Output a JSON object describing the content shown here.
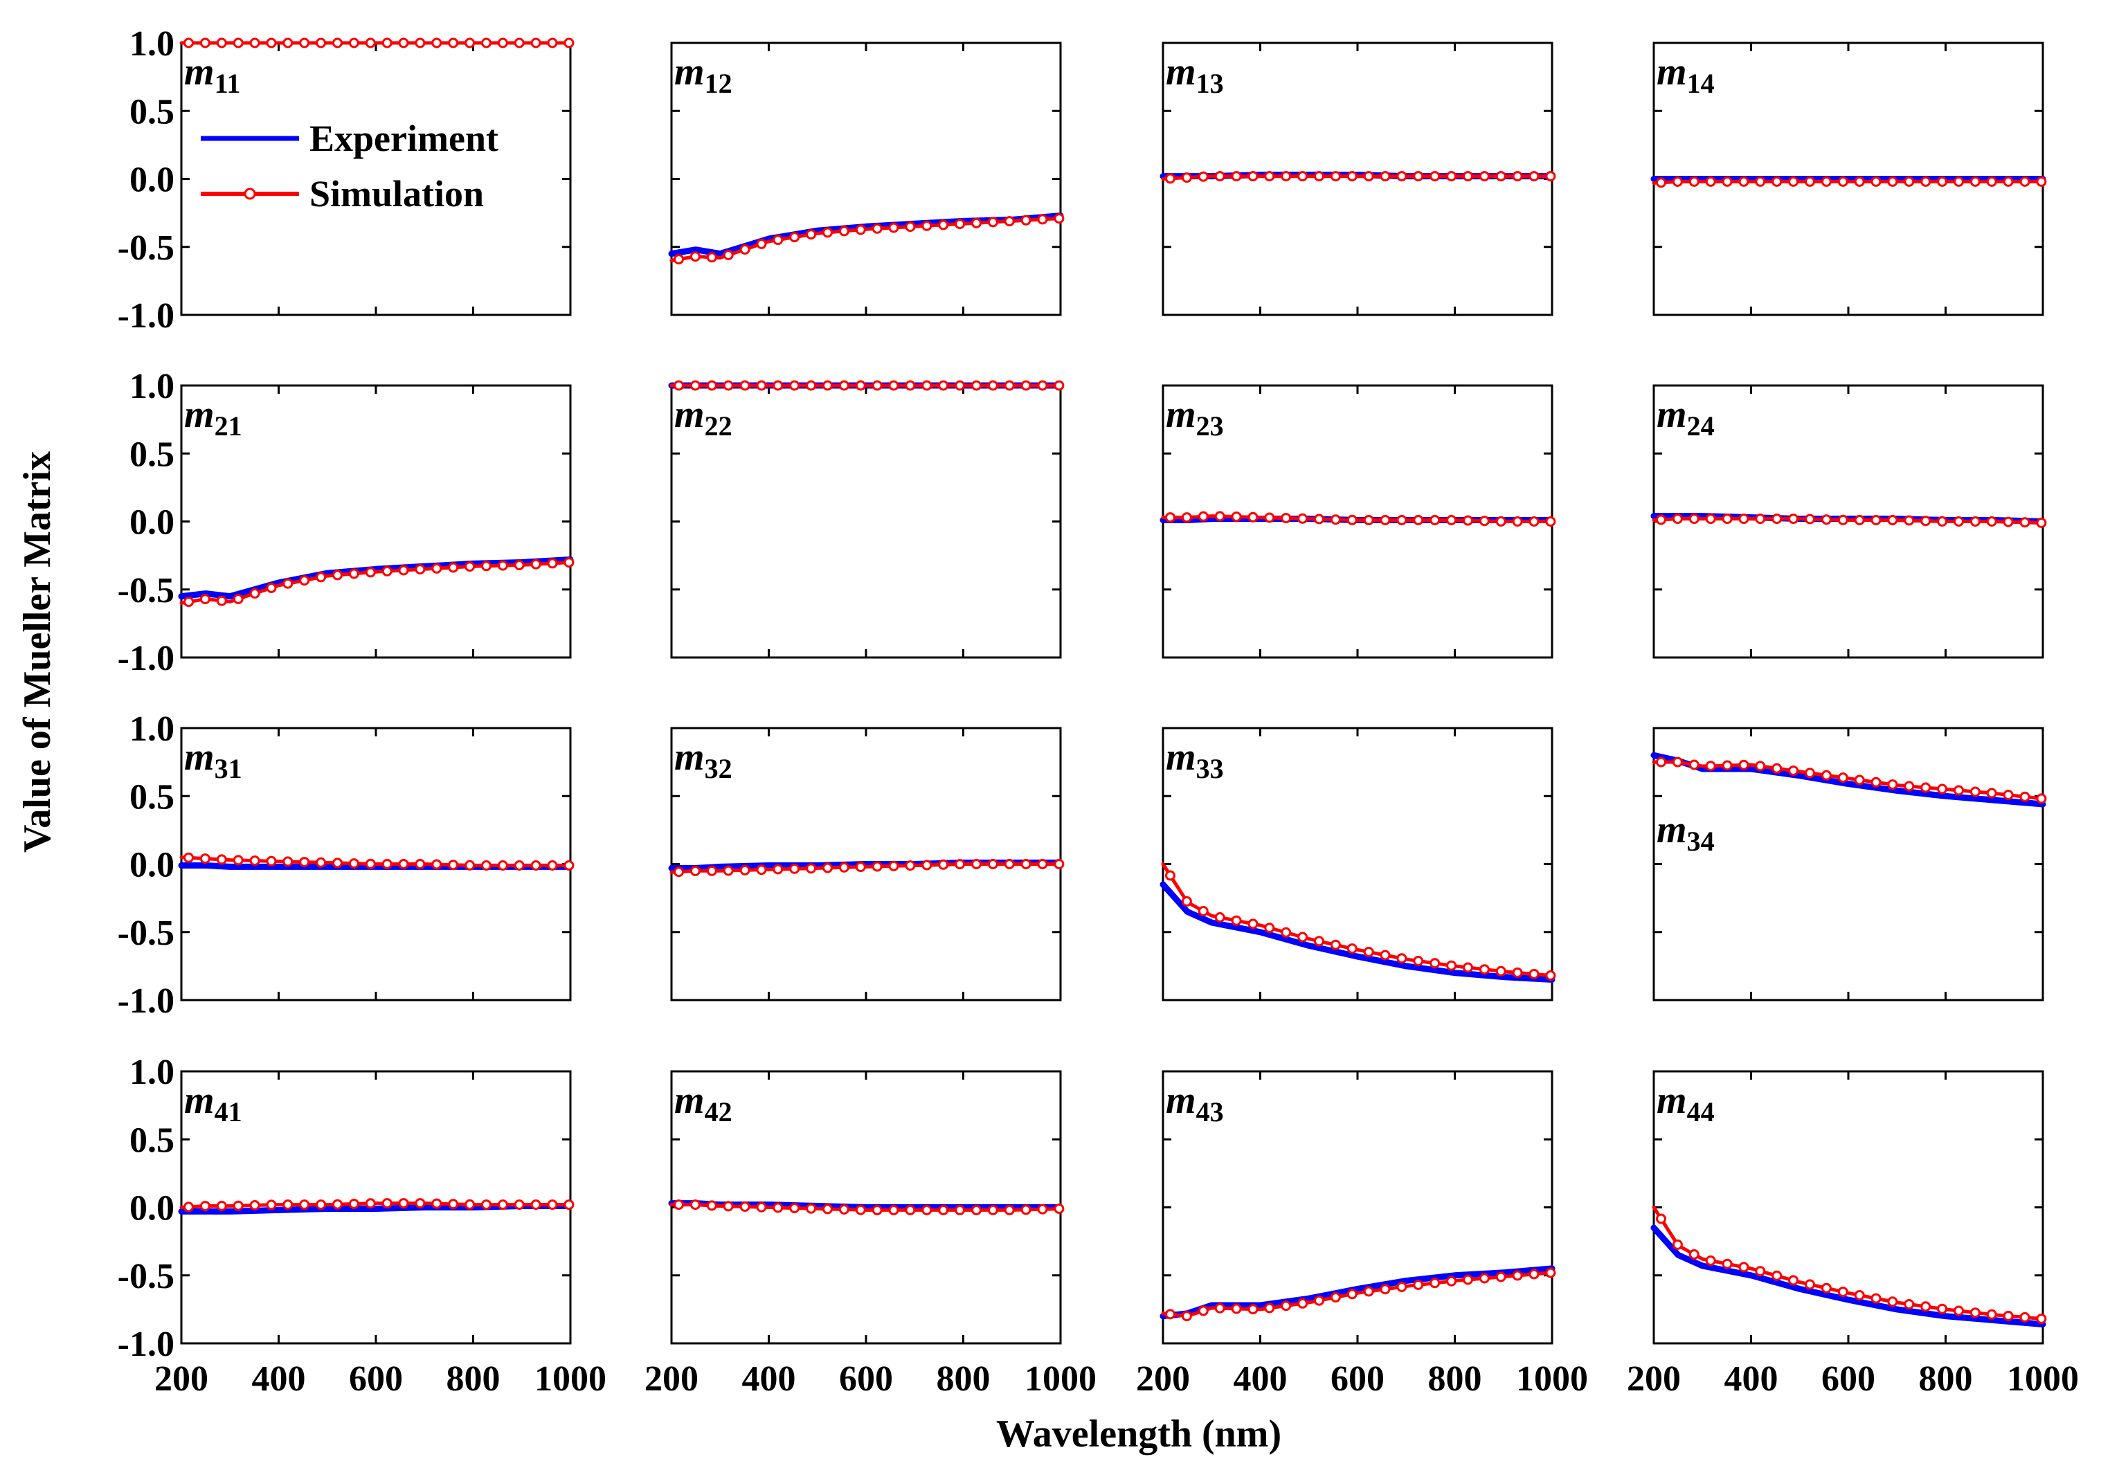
{
  "chart_data": {
    "type": "line",
    "grid": false,
    "layout": "4x4 panel grid",
    "xlabel": "Wavelength (nm)",
    "ylabel": "Value of Mueller Matrix",
    "xlim": [
      200,
      1000
    ],
    "ylim": [
      -1.0,
      1.0
    ],
    "x_ticks": [
      "200",
      "400",
      "600",
      "800",
      "1000"
    ],
    "y_ticks": [
      "1.0",
      "0.5",
      "0.0",
      "-0.5",
      "-1.0"
    ],
    "legend": [
      "Experiment",
      "Simulation"
    ],
    "legend_location": "inside panel m11, upper-left",
    "series_colors": {
      "Experiment": "#0000ff",
      "Simulation": "#ff0000"
    },
    "simulation_marker": "open circle",
    "x": [
      200,
      250,
      300,
      400,
      500,
      600,
      700,
      800,
      900,
      1000
    ],
    "panels": [
      {
        "name": "m11",
        "label_main": "m",
        "label_sub": "11",
        "label_pos": "top",
        "series": [
          {
            "name": "Simulation",
            "values": [
              1.0,
              1.0,
              1.0,
              1.0,
              1.0,
              1.0,
              1.0,
              1.0,
              1.0,
              1.0
            ]
          }
        ]
      },
      {
        "name": "m12",
        "label_main": "m",
        "label_sub": "12",
        "label_pos": "top",
        "series": [
          {
            "name": "Experiment",
            "values": [
              -0.55,
              -0.52,
              -0.55,
              -0.44,
              -0.38,
              -0.35,
              -0.33,
              -0.31,
              -0.3,
              -0.27
            ]
          },
          {
            "name": "Simulation",
            "values": [
              -0.6,
              -0.57,
              -0.58,
              -0.46,
              -0.4,
              -0.37,
              -0.35,
              -0.33,
              -0.31,
              -0.29
            ]
          }
        ]
      },
      {
        "name": "m13",
        "label_main": "m",
        "label_sub": "13",
        "label_pos": "top",
        "series": [
          {
            "name": "Experiment",
            "values": [
              0.02,
              0.02,
              0.02,
              0.03,
              0.03,
              0.03,
              0.02,
              0.02,
              0.02,
              0.02
            ]
          },
          {
            "name": "Simulation",
            "values": [
              0.0,
              0.01,
              0.02,
              0.02,
              0.02,
              0.02,
              0.02,
              0.02,
              0.02,
              0.02
            ]
          }
        ]
      },
      {
        "name": "m14",
        "label_main": "m",
        "label_sub": "14",
        "label_pos": "top",
        "series": [
          {
            "name": "Experiment",
            "values": [
              0.0,
              0.0,
              0.0,
              0.0,
              0.0,
              0.0,
              0.0,
              0.0,
              0.0,
              0.0
            ]
          },
          {
            "name": "Simulation",
            "values": [
              -0.03,
              -0.02,
              -0.02,
              -0.02,
              -0.02,
              -0.02,
              -0.02,
              -0.02,
              -0.02,
              -0.02
            ]
          }
        ]
      },
      {
        "name": "m21",
        "label_main": "m",
        "label_sub": "21",
        "label_pos": "top",
        "series": [
          {
            "name": "Experiment",
            "values": [
              -0.55,
              -0.53,
              -0.55,
              -0.45,
              -0.38,
              -0.35,
              -0.33,
              -0.31,
              -0.3,
              -0.28
            ]
          },
          {
            "name": "Simulation",
            "values": [
              -0.6,
              -0.57,
              -0.59,
              -0.47,
              -0.4,
              -0.37,
              -0.35,
              -0.33,
              -0.32,
              -0.3
            ]
          }
        ]
      },
      {
        "name": "m22",
        "label_main": "m",
        "label_sub": "22",
        "label_pos": "top",
        "series": [
          {
            "name": "Experiment",
            "values": [
              1.0,
              1.0,
              1.0,
              1.0,
              1.0,
              1.0,
              1.0,
              1.0,
              1.0,
              1.0
            ]
          },
          {
            "name": "Simulation",
            "values": [
              1.0,
              1.0,
              1.0,
              1.0,
              1.0,
              1.0,
              1.0,
              1.0,
              1.0,
              1.0
            ]
          }
        ]
      },
      {
        "name": "m23",
        "label_main": "m",
        "label_sub": "23",
        "label_pos": "top",
        "series": [
          {
            "name": "Experiment",
            "values": [
              0.01,
              0.01,
              0.02,
              0.02,
              0.02,
              0.01,
              0.01,
              0.01,
              0.01,
              0.01
            ]
          },
          {
            "name": "Simulation",
            "values": [
              0.03,
              0.03,
              0.04,
              0.03,
              0.02,
              0.01,
              0.01,
              0.01,
              0.0,
              0.0
            ]
          }
        ]
      },
      {
        "name": "m24",
        "label_main": "m",
        "label_sub": "24",
        "label_pos": "top",
        "series": [
          {
            "name": "Experiment",
            "values": [
              0.04,
              0.04,
              0.04,
              0.03,
              0.02,
              0.02,
              0.02,
              0.01,
              0.01,
              0.0
            ]
          },
          {
            "name": "Simulation",
            "values": [
              0.01,
              0.02,
              0.02,
              0.02,
              0.02,
              0.01,
              0.01,
              0.0,
              0.0,
              -0.01
            ]
          }
        ]
      },
      {
        "name": "m31",
        "label_main": "m",
        "label_sub": "31",
        "label_pos": "top",
        "series": [
          {
            "name": "Experiment",
            "values": [
              -0.01,
              -0.01,
              -0.02,
              -0.02,
              -0.02,
              -0.02,
              -0.02,
              -0.02,
              -0.02,
              -0.02
            ]
          },
          {
            "name": "Simulation",
            "values": [
              0.05,
              0.04,
              0.03,
              0.02,
              0.01,
              0.0,
              0.0,
              -0.01,
              -0.01,
              -0.01
            ]
          }
        ]
      },
      {
        "name": "m32",
        "label_main": "m",
        "label_sub": "32",
        "label_pos": "top",
        "series": [
          {
            "name": "Experiment",
            "values": [
              -0.03,
              -0.03,
              -0.02,
              -0.01,
              -0.01,
              0.0,
              0.0,
              0.01,
              0.01,
              0.01
            ]
          },
          {
            "name": "Simulation",
            "values": [
              -0.06,
              -0.05,
              -0.05,
              -0.04,
              -0.03,
              -0.02,
              -0.01,
              0.0,
              0.0,
              0.0
            ]
          }
        ]
      },
      {
        "name": "m33",
        "label_main": "m",
        "label_sub": "33",
        "label_pos": "top",
        "series": [
          {
            "name": "Experiment",
            "values": [
              -0.15,
              -0.35,
              -0.43,
              -0.5,
              -0.6,
              -0.68,
              -0.75,
              -0.8,
              -0.83,
              -0.85
            ]
          },
          {
            "name": "Simulation",
            "values": [
              0.0,
              -0.28,
              -0.38,
              -0.45,
              -0.55,
              -0.63,
              -0.7,
              -0.75,
              -0.79,
              -0.82
            ]
          }
        ]
      },
      {
        "name": "m34",
        "label_main": "m",
        "label_sub": "34",
        "label_pos": "middle",
        "series": [
          {
            "name": "Experiment",
            "values": [
              0.8,
              0.76,
              0.7,
              0.7,
              0.65,
              0.59,
              0.54,
              0.5,
              0.47,
              0.44
            ]
          },
          {
            "name": "Simulation",
            "values": [
              0.75,
              0.75,
              0.72,
              0.73,
              0.68,
              0.63,
              0.58,
              0.55,
              0.52,
              0.48
            ]
          }
        ]
      },
      {
        "name": "m41",
        "label_main": "m",
        "label_sub": "41",
        "label_pos": "top",
        "series": [
          {
            "name": "Experiment",
            "values": [
              -0.03,
              -0.03,
              -0.03,
              -0.02,
              -0.01,
              -0.01,
              0.0,
              0.0,
              0.01,
              0.01
            ]
          },
          {
            "name": "Simulation",
            "values": [
              0.0,
              0.01,
              0.01,
              0.02,
              0.02,
              0.03,
              0.03,
              0.02,
              0.02,
              0.02
            ]
          }
        ]
      },
      {
        "name": "m42",
        "label_main": "m",
        "label_sub": "42",
        "label_pos": "top",
        "series": [
          {
            "name": "Experiment",
            "values": [
              0.03,
              0.03,
              0.02,
              0.02,
              0.01,
              0.0,
              0.0,
              0.0,
              0.0,
              0.0
            ]
          },
          {
            "name": "Simulation",
            "values": [
              0.02,
              0.02,
              0.01,
              0.0,
              -0.01,
              -0.02,
              -0.02,
              -0.02,
              -0.02,
              -0.01
            ]
          }
        ]
      },
      {
        "name": "m43",
        "label_main": "m",
        "label_sub": "43",
        "label_pos": "top",
        "series": [
          {
            "name": "Experiment",
            "values": [
              -0.8,
              -0.78,
              -0.72,
              -0.72,
              -0.67,
              -0.6,
              -0.54,
              -0.5,
              -0.48,
              -0.45
            ]
          },
          {
            "name": "Simulation",
            "values": [
              -0.78,
              -0.8,
              -0.74,
              -0.75,
              -0.7,
              -0.63,
              -0.58,
              -0.54,
              -0.51,
              -0.48
            ]
          }
        ]
      },
      {
        "name": "m44",
        "label_main": "m",
        "label_sub": "44",
        "label_pos": "top",
        "series": [
          {
            "name": "Experiment",
            "values": [
              -0.15,
              -0.35,
              -0.43,
              -0.5,
              -0.6,
              -0.68,
              -0.75,
              -0.8,
              -0.83,
              -0.86
            ]
          },
          {
            "name": "Simulation",
            "values": [
              0.0,
              -0.28,
              -0.38,
              -0.45,
              -0.55,
              -0.63,
              -0.7,
              -0.75,
              -0.79,
              -0.82
            ]
          }
        ]
      }
    ]
  }
}
